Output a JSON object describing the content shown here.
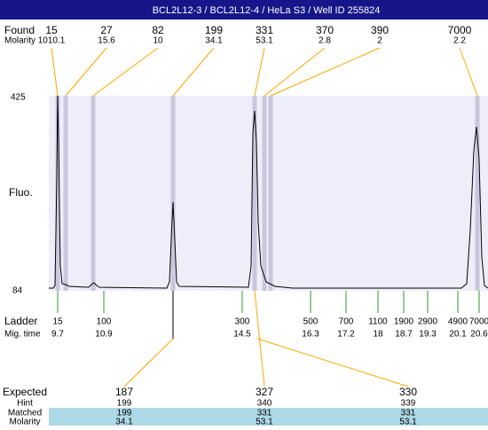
{
  "title": "BCL2L12-3 / BCL2L12-4 / HeLa S3 / Well ID 255824",
  "found": {
    "label": "Found",
    "molarity_label": "Molarity",
    "peaks": [
      {
        "size": "15",
        "molarity": "1010.1"
      },
      {
        "size": "27",
        "molarity": "15.6"
      },
      {
        "size": "82",
        "molarity": "10"
      },
      {
        "size": "199",
        "molarity": "34.1"
      },
      {
        "size": "331",
        "molarity": "53.1"
      },
      {
        "size": "370",
        "molarity": "2.8"
      },
      {
        "size": "390",
        "molarity": "2"
      },
      {
        "size": "7000",
        "molarity": "2.2"
      }
    ]
  },
  "y_axis": {
    "label": "Fluo.",
    "top": "425",
    "bottom": "84"
  },
  "ladder": {
    "label": "Ladder",
    "time_label": "Mig. time",
    "items": [
      {
        "size": "15",
        "time": "9.7"
      },
      {
        "size": "100",
        "time": "10.9"
      },
      {
        "size": "300",
        "time": "14.5"
      },
      {
        "size": "500",
        "time": "16.3"
      },
      {
        "size": "700",
        "time": "17.2"
      },
      {
        "size": "1100",
        "time": "18"
      },
      {
        "size": "1900",
        "time": "18.7"
      },
      {
        "size": "2900",
        "time": "19.3"
      },
      {
        "size": "4900",
        "time": "20.1"
      },
      {
        "size": "7000",
        "time": "20.6"
      }
    ]
  },
  "expected": {
    "row_labels": [
      "Expected",
      "Hint",
      "Matched",
      "Molarity"
    ],
    "columns": [
      [
        "187",
        "199",
        "199",
        "34.1"
      ],
      [
        "327",
        "340",
        "331",
        "53.1"
      ],
      [
        "330",
        "339",
        "331",
        "53.1"
      ]
    ]
  }
}
